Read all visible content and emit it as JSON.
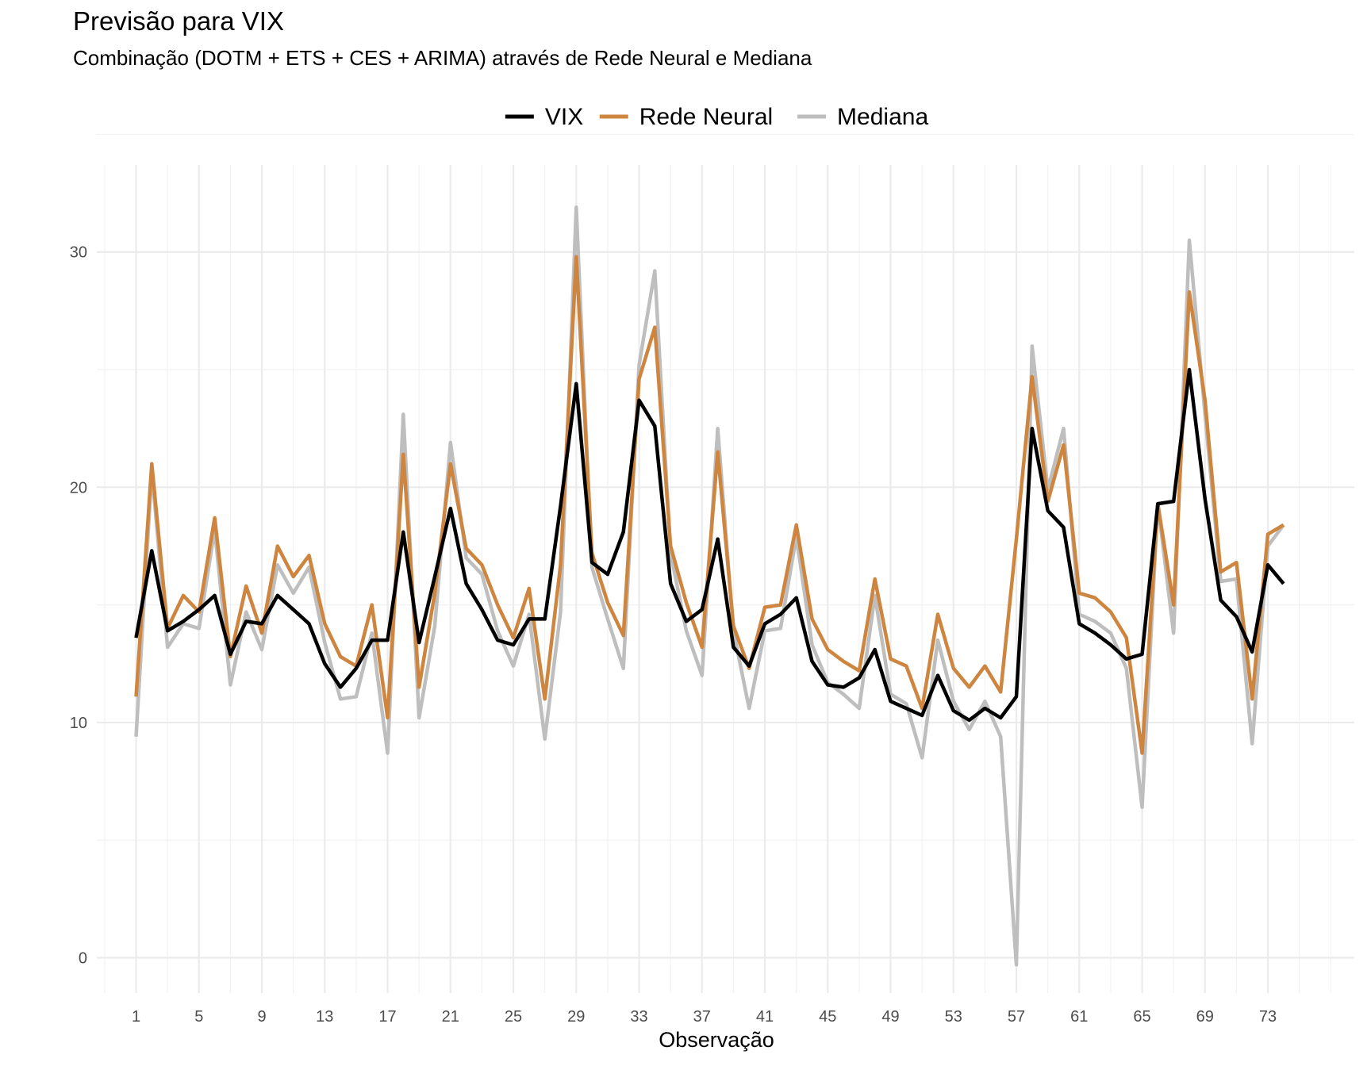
{
  "chart_data": {
    "type": "line",
    "title": "Previsão para VIX",
    "subtitle": "Combinação (DOTM + ETS + CES + ARIMA) através de Rede Neural e Mediana",
    "xlabel": "Observação",
    "ylabel": "",
    "xlim": [
      -1.5,
      78.5
    ],
    "ylim": [
      -1.5,
      33.7
    ],
    "x_ticks": [
      1,
      5,
      9,
      13,
      17,
      21,
      25,
      29,
      33,
      37,
      41,
      45,
      49,
      53,
      57,
      61,
      65,
      69,
      73
    ],
    "y_ticks": [
      0,
      10,
      20,
      30
    ],
    "grid": true,
    "legend_position": "top",
    "x": [
      1,
      2,
      3,
      4,
      5,
      6,
      7,
      8,
      9,
      10,
      11,
      12,
      13,
      14,
      15,
      16,
      17,
      18,
      19,
      20,
      21,
      22,
      23,
      24,
      25,
      26,
      27,
      28,
      29,
      30,
      31,
      32,
      33,
      34,
      35,
      36,
      37,
      38,
      39,
      40,
      41,
      42,
      43,
      44,
      45,
      46,
      47,
      48,
      49,
      50,
      51,
      52,
      53,
      54,
      55,
      56,
      57,
      58,
      59,
      60,
      61,
      62,
      63,
      64,
      65,
      66,
      67,
      68,
      69,
      70,
      71,
      72,
      73,
      74
    ],
    "series": [
      {
        "name": "VIX",
        "color": "#000000",
        "values": [
          13.6,
          17.3,
          13.9,
          14.3,
          14.8,
          15.4,
          12.9,
          14.3,
          14.2,
          15.4,
          14.8,
          14.2,
          12.5,
          11.5,
          12.3,
          13.5,
          13.5,
          18.1,
          13.4,
          16.2,
          19.1,
          15.9,
          14.8,
          13.5,
          13.3,
          14.4,
          14.4,
          19.2,
          24.4,
          16.8,
          16.3,
          18.1,
          23.7,
          22.6,
          15.9,
          14.3,
          14.8,
          17.8,
          13.2,
          12.4,
          14.2,
          14.6,
          15.3,
          12.6,
          11.6,
          11.5,
          11.9,
          13.1,
          10.9,
          10.6,
          10.3,
          12.0,
          10.5,
          10.1,
          10.6,
          10.2,
          11.1,
          22.5,
          19.0,
          18.3,
          14.2,
          13.8,
          13.3,
          12.7,
          12.9,
          19.3,
          19.4,
          25.0,
          19.5,
          15.2,
          14.5,
          13.0,
          16.7,
          15.9
        ]
      },
      {
        "name": "Rede Neural",
        "color": "#CD853F",
        "values": [
          11.1,
          21.0,
          14.0,
          15.4,
          14.7,
          18.7,
          12.8,
          15.8,
          13.8,
          17.5,
          16.2,
          17.1,
          14.2,
          12.8,
          12.4,
          15.0,
          10.2,
          21.4,
          11.5,
          15.5,
          21.0,
          17.4,
          16.7,
          15.0,
          13.6,
          15.7,
          11.0,
          16.7,
          29.8,
          17.2,
          15.1,
          13.7,
          24.6,
          26.8,
          17.5,
          15.1,
          13.2,
          21.5,
          14.1,
          12.3,
          14.9,
          15.0,
          18.4,
          14.4,
          13.1,
          12.6,
          12.2,
          16.1,
          12.7,
          12.4,
          10.6,
          14.6,
          12.3,
          11.5,
          12.4,
          11.3,
          17.8,
          24.7,
          19.4,
          21.8,
          15.5,
          15.3,
          14.7,
          13.6,
          8.7,
          19.3,
          15.0,
          28.3,
          23.7,
          16.4,
          16.8,
          11.0,
          18.0,
          18.4
        ]
      },
      {
        "name": "Mediana",
        "color": "#BEBEBE",
        "values": [
          9.4,
          20.7,
          13.2,
          14.2,
          14.0,
          18.2,
          11.6,
          14.7,
          13.1,
          16.7,
          15.5,
          16.6,
          13.4,
          11.0,
          11.1,
          13.8,
          8.7,
          23.1,
          10.2,
          14.1,
          21.9,
          17.0,
          16.3,
          13.9,
          12.4,
          14.6,
          9.3,
          14.7,
          31.9,
          16.6,
          14.4,
          12.3,
          25.2,
          29.2,
          17.2,
          13.9,
          12.0,
          22.5,
          13.9,
          10.6,
          13.9,
          14.0,
          17.9,
          13.3,
          11.7,
          11.2,
          10.6,
          15.4,
          11.2,
          10.8,
          8.5,
          13.5,
          10.9,
          9.7,
          10.9,
          9.4,
          -0.3,
          26.0,
          19.9,
          22.5,
          14.6,
          14.3,
          13.8,
          12.3,
          6.4,
          19.3,
          13.8,
          30.5,
          23.1,
          16.0,
          16.1,
          9.1,
          17.5,
          18.4
        ]
      }
    ]
  }
}
